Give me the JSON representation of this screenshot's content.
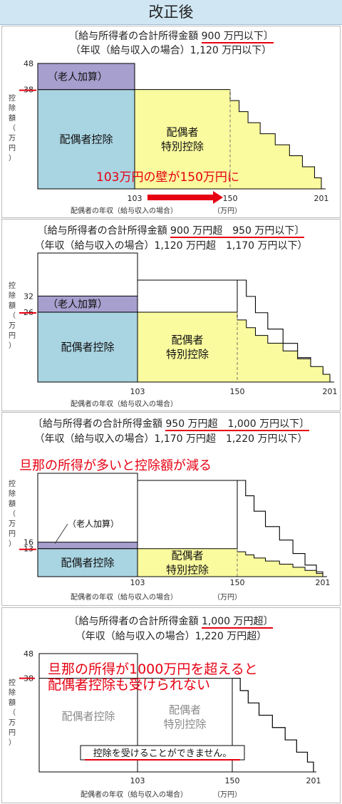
{
  "header": {
    "title": "改正後"
  },
  "panels": [
    {
      "title_line1_prefix": "〔給与所得者の合計所得金額",
      "title_line1_highlight": "900 万円以下〕",
      "title_line2": "（年収（給与収入の場合）1,120 万円以下）",
      "annotation": "103万円の壁が150万円に"
    },
    {
      "title_line1_prefix": "〔給与所得者の合計所得金額",
      "title_line1_highlight": "900 万円超　950 万円以下〕",
      "title_line2": "（年収（給与収入の場合）1,120 万円超　1,170 万円以下）",
      "annotation": ""
    },
    {
      "title_line1_prefix": "〔給与所得者の合計所得金額",
      "title_line1_highlight": "950 万円超　1,000 万円以下〕",
      "title_line2": "（年収（給与収入の場合）1,170 万円超　1,220 万円以下）",
      "annotation": "旦那の所得が多いと控除額が減る"
    },
    {
      "title_line1_prefix": "〔給与所得者の合計所得金額",
      "title_line1_highlight": "1,000 万円超〕",
      "title_line2": "（年収（給与収入の場合）1,220 万円超）",
      "annotation_line1": "旦那の所得が1000万円を超えると",
      "annotation_line2": "配偶者控除も受けられない",
      "notice": "控除を受けることができません。"
    }
  ],
  "labels": {
    "spouse_deduction": "配偶者控除",
    "special_line1": "配偶者",
    "special_line2": "特別控除",
    "elderly": "（老人加算）",
    "xlabel": "配偶者の年収（給与収入の場合）",
    "xunit": "（万円）",
    "ylabel": [
      "控",
      "除",
      "額",
      "（",
      "万",
      "円",
      "）"
    ]
  },
  "colors": {
    "spouse": "#a9d4e2",
    "special": "#fafa9e",
    "elderly": "#a79fce",
    "red": "#e60012"
  },
  "chart_data": [
    {
      "type": "area",
      "xlabel": "配偶者の年収（給与収入の場合）（万円）",
      "ylabel": "控除額（万円）",
      "x_ticks": [
        103,
        150,
        201
      ],
      "y_ticks": [
        38,
        48
      ],
      "series": [
        {
          "name": "配偶者控除",
          "x": [
            0,
            103
          ],
          "y": [
            38,
            38
          ]
        },
        {
          "name": "配偶者特別控除",
          "x": [
            103,
            150,
            155,
            160,
            166.8,
            175.2,
            183.2,
            190.4,
            197.2,
            201
          ],
          "y": [
            38,
            36,
            31,
            26,
            21,
            16,
            11,
            6,
            3,
            0
          ]
        },
        {
          "name": "（老人加算）",
          "x": [
            0,
            103
          ],
          "y": [
            10,
            10
          ]
        }
      ]
    },
    {
      "type": "area",
      "xlabel": "配偶者の年収（給与収入の場合）（万円）",
      "ylabel": "控除額（万円）",
      "x_ticks": [
        103,
        150,
        201
      ],
      "y_ticks": [
        26,
        32
      ],
      "series": [
        {
          "name": "配偶者控除",
          "x": [
            0,
            103
          ],
          "y": [
            26,
            26
          ]
        },
        {
          "name": "配偶者特別控除",
          "x": [
            103,
            150,
            155,
            160,
            166.8,
            175.2,
            183.2,
            190.4,
            197.2,
            201
          ],
          "y": [
            26,
            24,
            21,
            18,
            14,
            11,
            8,
            4,
            2,
            0
          ]
        },
        {
          "name": "（老人加算）",
          "x": [
            0,
            103
          ],
          "y": [
            6,
            6
          ]
        }
      ]
    },
    {
      "type": "area",
      "xlabel": "配偶者の年収（給与収入の場合）（万円）",
      "ylabel": "控除額（万円）",
      "x_ticks": [
        103,
        150,
        201
      ],
      "y_ticks": [
        13,
        16
      ],
      "series": [
        {
          "name": "配偶者控除",
          "x": [
            0,
            103
          ],
          "y": [
            13,
            13
          ]
        },
        {
          "name": "配偶者特別控除",
          "x": [
            103,
            150,
            155,
            160,
            166.8,
            175.2,
            183.2,
            190.4,
            197.2,
            201
          ],
          "y": [
            13,
            12,
            11,
            9,
            7,
            6,
            4,
            2,
            1,
            0
          ]
        },
        {
          "name": "（老人加算）",
          "x": [
            0,
            103
          ],
          "y": [
            3,
            3
          ]
        }
      ]
    },
    {
      "type": "area",
      "xlabel": "配偶者の年収（給与収入の場合）（万円）",
      "ylabel": "控除額（万円）",
      "x_ticks": [
        103,
        150,
        201
      ],
      "y_ticks": [
        38,
        48
      ],
      "series": [
        {
          "name": "配偶者控除",
          "x": [
            0,
            103
          ],
          "y": [
            0,
            0
          ]
        },
        {
          "name": "配偶者特別控除",
          "x": [
            103,
            150,
            201
          ],
          "y": [
            0,
            0,
            0
          ]
        }
      ]
    }
  ]
}
